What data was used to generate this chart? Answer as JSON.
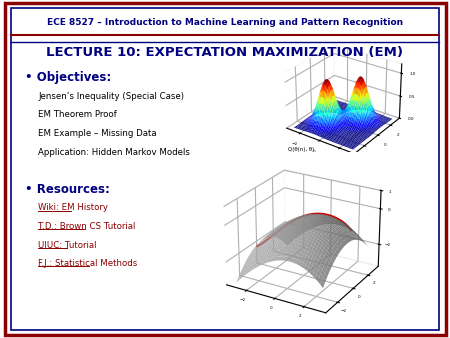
{
  "bg_color": "#ffffff",
  "border_outer_color": "#8B0000",
  "border_inner_color": "#000080",
  "header_bg": "#ffffff",
  "header_top_text": "ECE 8527 – Introduction to Machine Learning and Pattern Recognition",
  "header_top_color": "#000080",
  "title_text": "LECTURE 10: EXPECTATION MAXIMIZATION (EM)",
  "title_color": "#000080",
  "objectives_label": "Objectives:",
  "objectives_color": "#000080",
  "objectives_bullet": "•",
  "objectives_items": [
    "Jensen’s Inequality (Special Case)",
    "EM Theorem Proof",
    "EM Example – Missing Data",
    "Application: Hidden Markov Models"
  ],
  "objectives_items_color": "#000000",
  "resources_label": "Resources:",
  "resources_color": "#000080",
  "resources_bullet": "•",
  "resources_items": [
    "Wiki: EM History",
    "T.D.: Brown CS Tutorial",
    "UIUC: Tutorial",
    "F.J.: Statistical Methods"
  ],
  "resources_items_color": "#8B0000",
  "frame_line_color_outer": "#8B0000",
  "frame_line_color_inner": "#000080"
}
